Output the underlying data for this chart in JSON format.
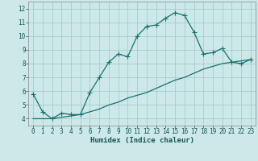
{
  "xlabel": "Humidex (Indice chaleur)",
  "xlim": [
    -0.5,
    23.5
  ],
  "ylim": [
    3.5,
    12.5
  ],
  "xticks": [
    0,
    1,
    2,
    3,
    4,
    5,
    6,
    7,
    8,
    9,
    10,
    11,
    12,
    13,
    14,
    15,
    16,
    17,
    18,
    19,
    20,
    21,
    22,
    23
  ],
  "yticks": [
    4,
    5,
    6,
    7,
    8,
    9,
    10,
    11,
    12
  ],
  "bg_color": "#cce8e8",
  "grid_color": "#aacccc",
  "line_color": "#1a7070",
  "line1_x": [
    0,
    1,
    2,
    3,
    4,
    5,
    6,
    7,
    8,
    9,
    10,
    11,
    12,
    13,
    14,
    15,
    16,
    17,
    18,
    19,
    20,
    21,
    22,
    23
  ],
  "line1_y": [
    5.8,
    4.5,
    4.0,
    4.4,
    4.3,
    4.3,
    5.9,
    7.0,
    8.1,
    8.7,
    8.5,
    10.0,
    10.7,
    10.8,
    11.3,
    11.7,
    11.5,
    10.3,
    8.7,
    8.8,
    9.1,
    8.1,
    8.0,
    8.3
  ],
  "line2_x": [
    0,
    1,
    2,
    3,
    4,
    5,
    6,
    7,
    8,
    9,
    10,
    11,
    12,
    13,
    14,
    15,
    16,
    17,
    18,
    19,
    20,
    21,
    22,
    23
  ],
  "line2_y": [
    4.0,
    4.0,
    4.0,
    4.1,
    4.2,
    4.3,
    4.5,
    4.7,
    5.0,
    5.2,
    5.5,
    5.7,
    5.9,
    6.2,
    6.5,
    6.8,
    7.0,
    7.3,
    7.6,
    7.8,
    8.0,
    8.1,
    8.2,
    8.3
  ],
  "tick_fontsize": 5.5,
  "xlabel_fontsize": 6.5,
  "marker_size": 2.2,
  "line_width": 0.9
}
